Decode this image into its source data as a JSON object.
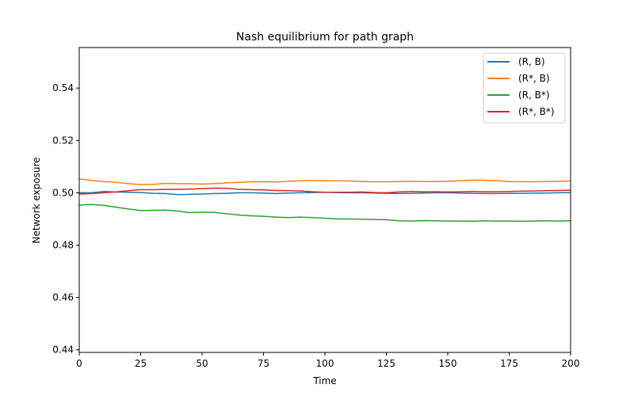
{
  "chart_data": {
    "type": "line",
    "title": "Nash equilibrium for path graph",
    "xlabel": "Time",
    "ylabel": "Network exposure",
    "xlim": [
      0,
      200
    ],
    "ylim": [
      0.439,
      0.5555
    ],
    "xticks": [
      0,
      25,
      50,
      75,
      100,
      125,
      150,
      175,
      200
    ],
    "yticks": [
      0.44,
      0.46,
      0.48,
      0.5,
      0.52,
      0.54
    ],
    "xtick_labels": [
      "0",
      "25",
      "50",
      "75",
      "100",
      "125",
      "150",
      "175",
      "200"
    ],
    "ytick_labels": [
      "0.44",
      "0.46",
      "0.48",
      "0.50",
      "0.52",
      "0.54"
    ],
    "grid": false,
    "legend_position": "top-right",
    "x": [
      0,
      5,
      10,
      15,
      20,
      25,
      30,
      35,
      40,
      45,
      50,
      55,
      60,
      65,
      70,
      75,
      80,
      85,
      90,
      95,
      100,
      105,
      110,
      115,
      120,
      125,
      130,
      135,
      140,
      145,
      150,
      155,
      160,
      165,
      170,
      175,
      180,
      185,
      190,
      195,
      200
    ],
    "series": [
      {
        "name": "(R, B)",
        "color": "#1f77b4",
        "values": [
          0.5,
          0.5,
          0.5005,
          0.5003,
          0.5002,
          0.5001,
          0.4998,
          0.4997,
          0.4993,
          0.4994,
          0.4995,
          0.4997,
          0.4998,
          0.5,
          0.5,
          0.4999,
          0.4997,
          0.4999,
          0.5,
          0.5001,
          0.5002,
          0.5001,
          0.5,
          0.5,
          0.4999,
          0.4998,
          0.4997,
          0.4998,
          0.4999,
          0.5,
          0.5,
          0.4999,
          0.4998,
          0.4997,
          0.4997,
          0.4998,
          0.4998,
          0.4999,
          0.4999,
          0.5,
          0.5001
        ]
      },
      {
        "name": "(R*, B)",
        "color": "#ff7f0e",
        "values": [
          0.5053,
          0.5047,
          0.5043,
          0.504,
          0.5035,
          0.5031,
          0.5032,
          0.5036,
          0.5035,
          0.5035,
          0.5033,
          0.5035,
          0.5038,
          0.504,
          0.5042,
          0.5042,
          0.5041,
          0.5044,
          0.5046,
          0.5047,
          0.5046,
          0.5046,
          0.5045,
          0.5043,
          0.5042,
          0.5042,
          0.5043,
          0.5044,
          0.5043,
          0.5043,
          0.5044,
          0.5046,
          0.5048,
          0.5048,
          0.5046,
          0.5043,
          0.5042,
          0.5042,
          0.5043,
          0.5044,
          0.5045
        ]
      },
      {
        "name": "(R, B*)",
        "color": "#2ca02c",
        "values": [
          0.4953,
          0.4955,
          0.4952,
          0.4945,
          0.4938,
          0.4932,
          0.4933,
          0.4934,
          0.493,
          0.4924,
          0.4926,
          0.4925,
          0.492,
          0.4915,
          0.4912,
          0.491,
          0.4907,
          0.4905,
          0.4907,
          0.4905,
          0.4903,
          0.49,
          0.49,
          0.4899,
          0.4898,
          0.4897,
          0.4893,
          0.4892,
          0.4894,
          0.4893,
          0.4892,
          0.4892,
          0.4891,
          0.4893,
          0.4892,
          0.4892,
          0.4891,
          0.4892,
          0.4893,
          0.4892,
          0.4893
        ]
      },
      {
        "name": "(R*, B*)",
        "color": "#d62728",
        "values": [
          0.4995,
          0.4997,
          0.5,
          0.5003,
          0.5008,
          0.5012,
          0.5012,
          0.5013,
          0.5013,
          0.5014,
          0.5016,
          0.5018,
          0.5017,
          0.5013,
          0.5012,
          0.5011,
          0.5009,
          0.5008,
          0.5007,
          0.5004,
          0.5002,
          0.5002,
          0.5002,
          0.5003,
          0.5001,
          0.5,
          0.5003,
          0.5005,
          0.5004,
          0.5004,
          0.5003,
          0.5004,
          0.5005,
          0.5004,
          0.5004,
          0.5005,
          0.5006,
          0.5007,
          0.5008,
          0.5009,
          0.501
        ]
      }
    ]
  }
}
